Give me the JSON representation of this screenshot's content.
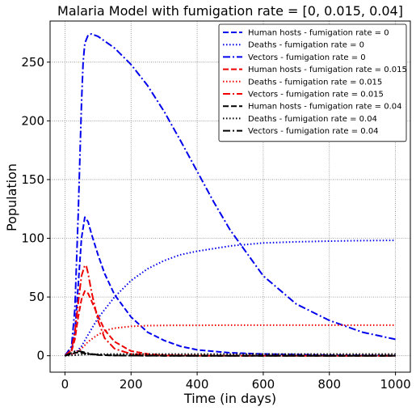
{
  "chart_data": {
    "type": "line",
    "title": "Malaria Model with fumigation rate = [0, 0.015, 0.04]",
    "xlabel": "Time (in days)",
    "ylabel": "Population",
    "xlim": [
      -45,
      1045
    ],
    "ylim": [
      -14,
      285
    ],
    "xticks": [
      0,
      200,
      400,
      600,
      800,
      1000
    ],
    "yticks": [
      0,
      50,
      100,
      150,
      200,
      250
    ],
    "grid": true,
    "legend_position": "top-right",
    "series": [
      {
        "name": "Human hosts - fumigation rate = 0",
        "color": "#0000ee",
        "style": "dashed",
        "x": [
          0,
          20,
          30,
          40,
          50,
          60,
          70,
          80,
          100,
          120,
          150,
          200,
          250,
          300,
          350,
          400,
          500,
          600,
          700,
          800,
          900,
          1000
        ],
        "y": [
          0,
          5,
          20,
          60,
          100,
          118,
          114,
          104,
          86,
          70,
          52,
          33,
          20,
          13,
          8,
          5,
          2.5,
          1.5,
          1,
          0.5,
          0.3,
          0.2
        ]
      },
      {
        "name": "Deaths - fumigation rate = 0",
        "color": "#0000ee",
        "style": "dotted",
        "x": [
          0,
          30,
          50,
          70,
          100,
          150,
          200,
          250,
          300,
          350,
          400,
          500,
          600,
          700,
          800,
          900,
          1000
        ],
        "y": [
          0,
          2,
          8,
          18,
          32,
          50,
          64,
          74,
          81,
          86,
          89,
          93.5,
          96,
          97,
          97.6,
          98,
          98.2
        ]
      },
      {
        "name": "Vectors - fumigation rate = 0",
        "color": "#0000ee",
        "style": "dashdot",
        "x": [
          0,
          20,
          30,
          40,
          50,
          55,
          60,
          70,
          80,
          100,
          150,
          200,
          250,
          300,
          350,
          400,
          450,
          500,
          600,
          700,
          800,
          900,
          1000
        ],
        "y": [
          0,
          8,
          40,
          120,
          215,
          250,
          266,
          273,
          274,
          272,
          262,
          248,
          230,
          208,
          183,
          157,
          131,
          107,
          68,
          44,
          30,
          20,
          14
        ]
      },
      {
        "name": "Human hosts - fumigation rate = 0.015",
        "color": "#ee0000",
        "style": "dashed",
        "x": [
          0,
          20,
          30,
          40,
          50,
          60,
          70,
          80,
          100,
          120,
          150,
          200,
          250,
          300,
          400,
          500,
          600,
          800,
          1000
        ],
        "y": [
          0,
          4,
          14,
          33,
          48,
          55,
          53,
          47,
          34,
          22,
          12,
          4,
          1.5,
          0.5,
          0.2,
          0.1,
          0.1,
          0,
          0
        ]
      },
      {
        "name": "Deaths - fumigation rate = 0.015",
        "color": "#ee0000",
        "style": "dotted",
        "x": [
          0,
          30,
          50,
          70,
          100,
          130,
          150,
          200,
          250,
          300,
          400,
          500,
          600,
          800,
          1000
        ],
        "y": [
          0,
          2,
          6,
          12,
          18,
          22,
          23.5,
          25,
          25.6,
          25.8,
          25.9,
          26,
          26,
          26,
          26
        ]
      },
      {
        "name": "Vectors - fumigation rate = 0.015",
        "color": "#ee0000",
        "style": "dashdot",
        "x": [
          0,
          20,
          30,
          40,
          50,
          60,
          65,
          70,
          80,
          100,
          120,
          150,
          200,
          250,
          300,
          400,
          500,
          1000
        ],
        "y": [
          0,
          5,
          20,
          45,
          68,
          77,
          76,
          70,
          55,
          30,
          15,
          6,
          1.5,
          0.5,
          0.2,
          0,
          0,
          0
        ]
      },
      {
        "name": "Human hosts - fumigation rate = 0.04",
        "color": "#000000",
        "style": "dashed",
        "x": [
          0,
          20,
          30,
          40,
          50,
          60,
          80,
          100,
          150,
          200,
          300,
          500,
          1000
        ],
        "y": [
          0,
          1.5,
          2.5,
          2.8,
          2.5,
          2,
          1.2,
          0.7,
          0.2,
          0.1,
          0,
          0,
          0
        ]
      },
      {
        "name": "Deaths - fumigation rate = 0.04",
        "color": "#000000",
        "style": "dotted",
        "x": [
          0,
          30,
          50,
          80,
          100,
          150,
          200,
          300,
          500,
          1000
        ],
        "y": [
          0,
          0.5,
          0.9,
          1.2,
          1.3,
          1.4,
          1.4,
          1.4,
          1.4,
          1.4
        ]
      },
      {
        "name": "Vectors - fumigation rate = 0.04",
        "color": "#000000",
        "style": "dashdot",
        "x": [
          0,
          20,
          30,
          40,
          50,
          60,
          80,
          100,
          150,
          200,
          300,
          500,
          1000
        ],
        "y": [
          0,
          2.5,
          3.8,
          4,
          3.5,
          2.8,
          1.5,
          0.8,
          0.2,
          0.1,
          0,
          0,
          0
        ]
      }
    ]
  }
}
